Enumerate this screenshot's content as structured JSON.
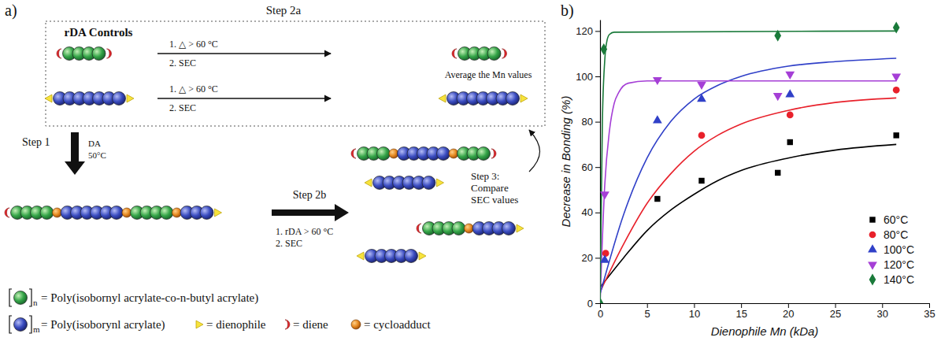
{
  "panel_a": {
    "label": "a)",
    "step2a": "Step 2a",
    "box_title": "rDA Controls",
    "control_conditions": [
      "1. △ > 60 °C",
      "2. SEC"
    ],
    "average": "Average the Mn values",
    "step1": "Step 1",
    "step1_conditions": [
      "DA",
      "50°C"
    ],
    "step2b": "Step 2b",
    "step2b_conditions": [
      "1. rDA > 60 °C",
      "2. SEC"
    ],
    "step3": [
      "Step 3:",
      "Compare",
      "SEC values"
    ],
    "legend": [
      {
        "subscript": "n",
        "label": "= Poly(isobornyl acrylate-co-n-butyl acrylate)"
      },
      {
        "subscript": "m",
        "label": "= Poly(isoborynl acrylate)"
      }
    ],
    "symbols": [
      "= dienophile",
      "= diene",
      "= cycloadduct"
    ]
  },
  "chart_data": {
    "type": "scatter",
    "label": "b)",
    "xlabel": "Dienophile Mn (kDa)",
    "ylabel": "Decrease in Bonding (%)",
    "xlim": [
      0,
      35
    ],
    "ylim": [
      0,
      125
    ],
    "xticks": [
      0,
      5,
      10,
      15,
      20,
      25,
      30,
      35
    ],
    "yticks": [
      0,
      20,
      40,
      60,
      80,
      100,
      120
    ],
    "grid": false,
    "legend": "bottom-right",
    "series": [
      {
        "name": "60°C",
        "color": "#000000",
        "marker": "square",
        "x": [
          6.1,
          10.8,
          18.9,
          20.2,
          31.5
        ],
        "values": [
          46,
          54,
          57.5,
          71,
          74
        ],
        "fit_x": [
          0,
          2.5,
          5,
          7.5,
          10,
          12.5,
          15,
          20,
          25,
          31.5
        ],
        "fit_values": [
          7,
          20,
          32,
          41,
          48,
          54,
          58.5,
          64,
          67.5,
          70
        ]
      },
      {
        "name": "80°C",
        "color": "#e8212b",
        "marker": "circle",
        "x": [
          0.6,
          10.8,
          20.2,
          31.5
        ],
        "values": [
          22,
          74,
          83,
          94
        ],
        "fit_x": [
          0,
          2.5,
          5,
          7.5,
          10,
          12.5,
          15,
          20,
          25,
          31.5
        ],
        "fit_values": [
          5,
          26,
          44,
          57,
          67,
          74,
          79,
          85,
          88.5,
          90.5
        ]
      },
      {
        "name": "100°C",
        "color": "#3040c8",
        "marker": "triangle-up",
        "x": [
          0.5,
          6.1,
          10.8,
          20.2
        ],
        "values": [
          19,
          80.5,
          90,
          92
        ],
        "fit_x": [
          0,
          2.5,
          5,
          7.5,
          10,
          12.5,
          15,
          20,
          25,
          31.5
        ],
        "fit_values": [
          4,
          39,
          64,
          80,
          90,
          96,
          100,
          104.5,
          106.5,
          108
        ]
      },
      {
        "name": "120°C",
        "color": "#a53fd6",
        "marker": "triangle-down",
        "x": [
          0.5,
          6.1,
          10.8,
          18.9,
          20.2,
          31.5
        ],
        "values": [
          48,
          98.5,
          96.5,
          91.5,
          101,
          100
        ],
        "fit_x": [
          0,
          0.5,
          1,
          1.5,
          2,
          3,
          5,
          31.5
        ],
        "fit_values": [
          0,
          52,
          76,
          88,
          93,
          97,
          98,
          98
        ]
      },
      {
        "name": "140°C",
        "color": "#1a7a3a",
        "marker": "diamond",
        "x": [
          0,
          0.4,
          18.9,
          31.5
        ],
        "values": [
          0,
          112,
          118,
          121.5
        ],
        "fit_x": [
          0,
          0.25,
          0.5,
          0.75,
          1,
          1.5,
          31.5
        ],
        "fit_values": [
          0,
          80,
          107,
          116,
          118.5,
          119.5,
          120
        ]
      }
    ]
  }
}
